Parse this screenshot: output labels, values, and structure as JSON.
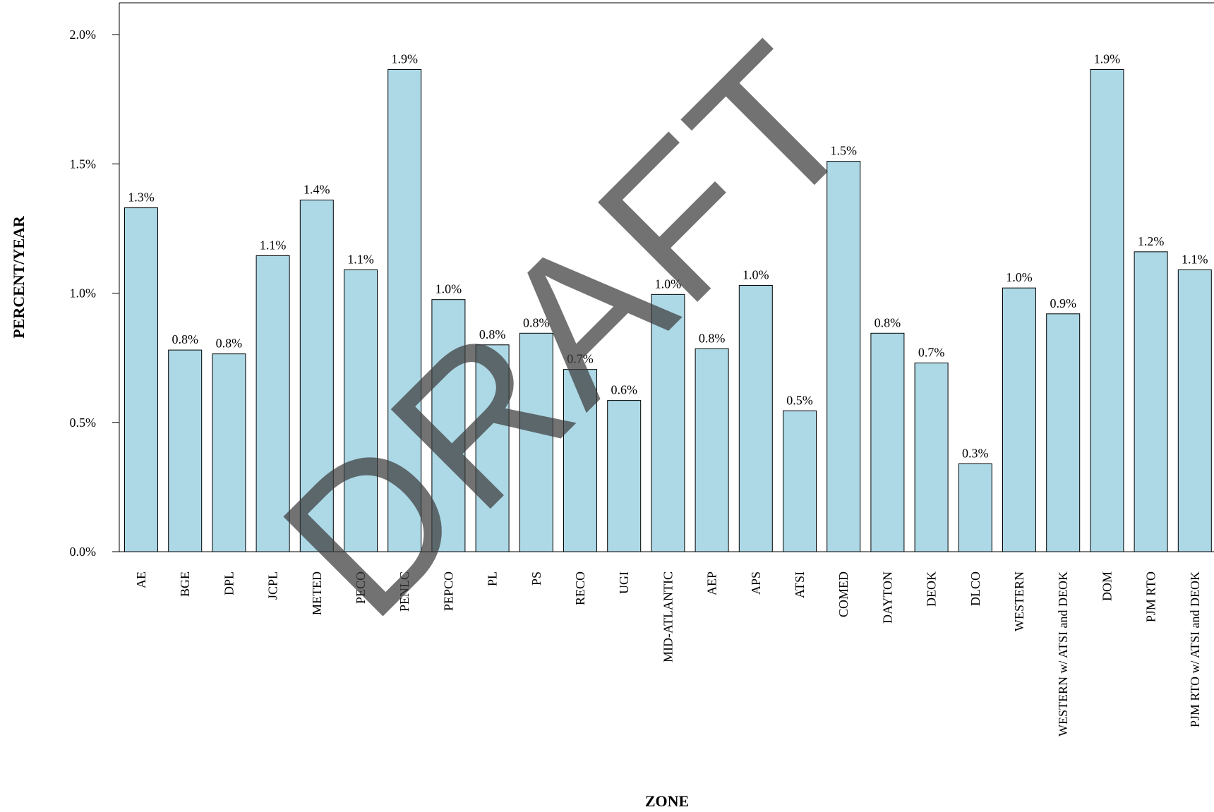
{
  "chart_data": {
    "type": "bar",
    "title": "",
    "xlabel": "ZONE",
    "ylabel": "PERCENT/YEAR",
    "ylim": [
      0,
      2.0
    ],
    "yticks": [
      "0.0%",
      "0.5%",
      "1.0%",
      "1.5%",
      "2.0%"
    ],
    "ytick_values": [
      0,
      0.5,
      1.0,
      1.5,
      2.0
    ],
    "grid": false,
    "bar_color": "#add8e6",
    "bar_edge_color": "#000000",
    "categories": [
      "AE",
      "BGE",
      "DPL",
      "JCPL",
      "METED",
      "PECO",
      "PENLC",
      "PEPCO",
      "PL",
      "PS",
      "RECO",
      "UGI",
      "MID-ATLANTIC",
      "AEP",
      "APS",
      "ATSI",
      "COMED",
      "DAYTON",
      "DEOK",
      "DLCO",
      "WESTERN",
      "WESTERN w/ ATSI and DEOK",
      "DOM",
      "PJM RTO",
      "PJM RTO w/ ATSI and DEOK"
    ],
    "values": [
      1.33,
      0.78,
      0.765,
      1.145,
      1.36,
      1.09,
      1.865,
      0.975,
      0.8,
      0.845,
      0.705,
      0.585,
      0.995,
      0.785,
      1.03,
      0.545,
      1.51,
      0.845,
      0.73,
      0.34,
      1.02,
      0.92,
      1.865,
      1.16,
      1.09
    ],
    "data_labels": [
      "1.3%",
      "0.8%",
      "0.8%",
      "1.1%",
      "1.4%",
      "1.1%",
      "1.9%",
      "1.0%",
      "0.8%",
      "0.8%",
      "0.7%",
      "0.6%",
      "1.0%",
      "0.8%",
      "1.0%",
      "0.5%",
      "1.5%",
      "0.8%",
      "0.7%",
      "0.3%",
      "1.0%",
      "0.9%",
      "1.9%",
      "1.2%",
      "1.1%"
    ]
  },
  "watermark": {
    "text": "DRAFT",
    "color": "#3c3c3c"
  }
}
